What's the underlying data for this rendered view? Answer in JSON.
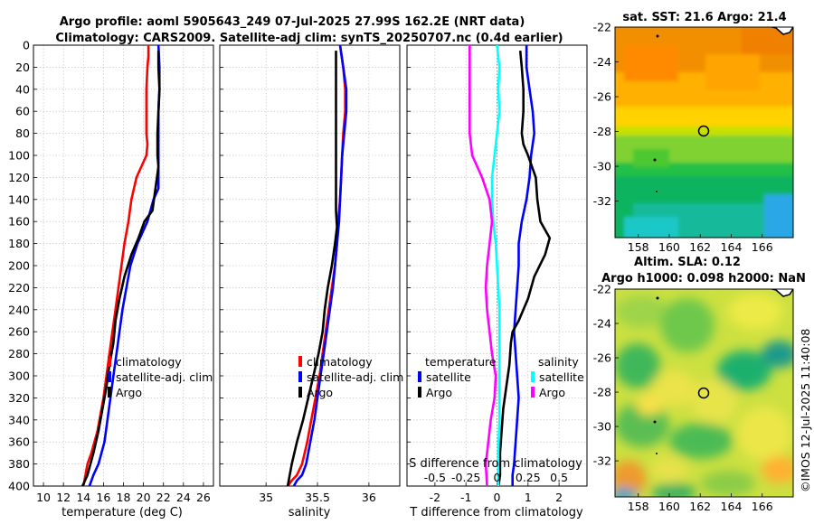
{
  "title_line1": "Argo profile: aoml 5905643_249 07-Jul-2025 27.99S 162.2E (NRT data)",
  "title_line2": "Climatology: CARS2009. Satellite-adj clim: synTS_20250707.nc (0.4d earlier)",
  "credit": "©IMOS 12-Jul-2025 11:40:08",
  "colors": {
    "climatology": "#ff0000",
    "satellite": "#0000ff",
    "argo": "#000000",
    "salinity_sat": "#00ffff",
    "salinity_argo": "#ff00ff",
    "grid": "#bbbbbb",
    "zero_line": "#44aaff"
  },
  "chart_data": [
    {
      "id": "temperature",
      "type": "line",
      "xlabel": "temperature (deg C)",
      "ylabel": "",
      "xlim": [
        9,
        27
      ],
      "ylim": [
        0,
        400
      ],
      "xticks": [
        "10",
        "12",
        "14",
        "16",
        "18",
        "20",
        "22",
        "24",
        "26"
      ],
      "yticks": [
        "0",
        "20",
        "40",
        "60",
        "80",
        "100",
        "120",
        "140",
        "160",
        "180",
        "200",
        "220",
        "240",
        "260",
        "280",
        "300",
        "320",
        "340",
        "360",
        "380",
        "400"
      ],
      "legend": [
        "climatology",
        "satellite-adj. clim",
        "Argo"
      ],
      "series": [
        {
          "name": "climatology",
          "x": [
            20.5,
            20.5,
            20.4,
            20.3,
            20.3,
            20.3,
            20.4,
            20.3,
            19.3,
            18.8,
            18.5,
            18.1,
            17.8,
            17.5,
            17.2,
            16.9,
            16.6,
            16.3,
            16.0,
            15.6,
            15.4,
            15.1,
            14.8,
            14.4,
            14.2,
            14.0
          ],
          "y": [
            0,
            10,
            20,
            40,
            60,
            80,
            90,
            100,
            120,
            140,
            160,
            180,
            200,
            220,
            240,
            260,
            280,
            300,
            320,
            340,
            350,
            360,
            370,
            380,
            390,
            400
          ]
        },
        {
          "name": "satellite-adj. clim",
          "x": [
            21.5,
            21.6,
            21.6,
            21.5,
            21.5,
            21.5,
            21.5,
            21.5,
            21.0,
            20.4,
            19.4,
            18.7,
            18.3,
            17.9,
            17.6,
            17.3,
            17.0,
            16.7,
            16.4,
            16.1,
            15.8,
            15.5,
            15.0,
            14.6
          ],
          "y": [
            0,
            20,
            40,
            60,
            80,
            100,
            120,
            130,
            140,
            160,
            180,
            200,
            220,
            240,
            260,
            280,
            300,
            320,
            340,
            360,
            370,
            380,
            390,
            400
          ]
        },
        {
          "name": "Argo",
          "x": [
            21.5,
            21.5,
            21.6,
            21.5,
            21.4,
            21.4,
            21.5,
            21.2,
            20.9,
            20.1,
            19.5,
            18.8,
            18.1,
            17.6,
            17.2,
            17.0,
            16.6,
            16.3,
            15.9,
            15.5,
            15.0,
            14.4,
            13.9
          ],
          "y": [
            5,
            20,
            40,
            60,
            80,
            100,
            110,
            130,
            150,
            160,
            175,
            190,
            210,
            230,
            250,
            270,
            290,
            310,
            330,
            350,
            370,
            390,
            400
          ]
        }
      ]
    },
    {
      "id": "salinity",
      "type": "line",
      "xlabel": "salinity",
      "xlim": [
        34.55,
        36.3
      ],
      "ylim": [
        0,
        400
      ],
      "xticks": [
        "35",
        "35.5",
        "36"
      ],
      "legend": [
        "climatology",
        "satellite-adj. clim",
        "Argo"
      ],
      "series": [
        {
          "name": "climatology",
          "x": [
            35.72,
            35.75,
            35.77,
            35.77,
            35.75,
            35.74,
            35.73,
            35.72,
            35.7,
            35.69,
            35.67,
            35.64,
            35.61,
            35.58,
            35.55,
            35.52,
            35.48,
            35.44,
            35.4,
            35.35,
            35.3,
            35.25,
            35.21
          ],
          "y": [
            0,
            20,
            40,
            60,
            80,
            100,
            120,
            140,
            160,
            180,
            200,
            220,
            240,
            260,
            280,
            300,
            320,
            340,
            360,
            380,
            390,
            395,
            400
          ]
        },
        {
          "name": "satellite-adj. clim",
          "x": [
            35.72,
            35.75,
            35.78,
            35.78,
            35.76,
            35.74,
            35.73,
            35.72,
            35.71,
            35.69,
            35.67,
            35.65,
            35.62,
            35.59,
            35.56,
            35.53,
            35.5,
            35.47,
            35.43,
            35.39,
            35.35,
            35.3,
            35.27
          ],
          "y": [
            0,
            20,
            40,
            60,
            80,
            100,
            120,
            140,
            160,
            180,
            200,
            220,
            240,
            260,
            280,
            300,
            320,
            340,
            360,
            380,
            390,
            395,
            400
          ]
        },
        {
          "name": "Argo",
          "x": [
            35.68,
            35.68,
            35.68,
            35.68,
            35.68,
            35.68,
            35.68,
            35.68,
            35.68,
            35.69,
            35.67,
            35.64,
            35.6,
            35.57,
            35.55,
            35.51,
            35.46,
            35.41,
            35.36,
            35.3,
            35.25,
            35.21
          ],
          "y": [
            5,
            20,
            40,
            60,
            80,
            100,
            120,
            135,
            150,
            165,
            180,
            200,
            220,
            240,
            260,
            280,
            300,
            320,
            340,
            360,
            380,
            400
          ]
        }
      ]
    },
    {
      "id": "difference",
      "type": "line",
      "xlabel": "T difference from climatology",
      "xlabel_top": "S difference from climatology",
      "xlim": [
        -2.9,
        2.9
      ],
      "ylim": [
        0,
        400
      ],
      "xticks": [
        "-2",
        "-1",
        "0",
        "1",
        "2"
      ],
      "xticks_salinity": [
        "-0.5",
        "-0.25",
        "0",
        "0.25",
        "0.5"
      ],
      "legend_temperature": {
        "heading": "temperature",
        "items": [
          "satellite",
          "Argo"
        ]
      },
      "legend_salinity": {
        "heading": "salinity",
        "items": [
          "satellite",
          "Argo"
        ]
      },
      "series": [
        {
          "name": "T satellite",
          "x": [
            0.95,
            0.95,
            1.05,
            1.15,
            1.2,
            1.1,
            1.05,
            0.95,
            0.8,
            0.7,
            0.7,
            0.65,
            0.6,
            0.55,
            0.6,
            0.65,
            0.7,
            0.65,
            0.6,
            0.55,
            0.5,
            0.5
          ],
          "y": [
            0,
            20,
            40,
            60,
            80,
            100,
            120,
            140,
            160,
            180,
            200,
            220,
            240,
            260,
            280,
            300,
            320,
            340,
            360,
            380,
            390,
            400
          ]
        },
        {
          "name": "T Argo",
          "x": [
            0.75,
            0.8,
            0.85,
            0.85,
            0.8,
            0.85,
            1.0,
            1.25,
            1.3,
            1.4,
            1.7,
            1.55,
            1.2,
            1.0,
            0.7,
            0.5,
            0.45,
            0.4,
            0.3,
            0.2,
            0.15,
            0.1,
            0.1,
            0.05
          ],
          "y": [
            5,
            20,
            40,
            60,
            80,
            90,
            100,
            120,
            140,
            160,
            175,
            190,
            210,
            230,
            250,
            260,
            270,
            290,
            310,
            330,
            350,
            370,
            390,
            400
          ]
        },
        {
          "name": "S satellite",
          "x": [
            0.0,
            0.02,
            0.01,
            0.02,
            0.0,
            -0.02,
            -0.04,
            -0.04,
            -0.03,
            -0.01,
            0.0,
            0.01,
            0.02,
            0.02,
            0.02,
            0.02,
            0.02,
            0.02,
            0.01,
            0.01
          ],
          "y": [
            0,
            20,
            40,
            60,
            80,
            100,
            120,
            140,
            160,
            180,
            200,
            220,
            240,
            260,
            280,
            300,
            320,
            340,
            370,
            400
          ]
        },
        {
          "name": "S Argo",
          "x": [
            -0.22,
            -0.22,
            -0.22,
            -0.22,
            -0.22,
            -0.2,
            -0.12,
            -0.06,
            -0.04,
            -0.06,
            -0.08,
            -0.09,
            -0.08,
            -0.06,
            -0.04,
            -0.01,
            -0.02,
            -0.05,
            -0.07,
            -0.09,
            -0.08
          ],
          "y": [
            0,
            20,
            40,
            60,
            80,
            100,
            120,
            140,
            160,
            180,
            200,
            220,
            240,
            260,
            280,
            300,
            320,
            340,
            360,
            380,
            400
          ]
        }
      ]
    },
    {
      "id": "sst_map",
      "type": "heatmap",
      "title": "sat. SST: 21.6 Argo: 21.4",
      "xticks": [
        "158",
        "160",
        "162",
        "164",
        "166"
      ],
      "yticks": [
        "-22",
        "-24",
        "-26",
        "-28",
        "-30",
        "-32"
      ],
      "marker": {
        "lon": 162.2,
        "lat": -27.99
      }
    },
    {
      "id": "sla_map",
      "type": "heatmap",
      "title_line1": "Altim. SLA: 0.12",
      "title_line2": "Argo h1000: 0.098 h2000: NaN",
      "xticks": [
        "158",
        "160",
        "162",
        "164",
        "166"
      ],
      "yticks": [
        "-22",
        "-24",
        "-26",
        "-28",
        "-30",
        "-32"
      ],
      "marker": {
        "lon": 162.2,
        "lat": -27.99
      }
    }
  ]
}
